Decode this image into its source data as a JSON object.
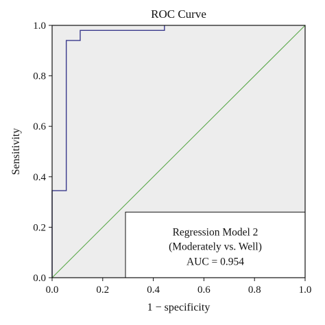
{
  "colors": {
    "plot_background": "#ededed",
    "roc_line": "#3a3a8c",
    "reference_line": "#5aa84a",
    "legend_background": "#ffffff",
    "axis": "#111111"
  },
  "chart_data": {
    "type": "line",
    "title": "ROC Curve",
    "xlabel": "1 − specificity",
    "ylabel": "Sensitivity",
    "xlim": [
      0.0,
      1.0
    ],
    "ylim": [
      0.0,
      1.0
    ],
    "x_ticks": [
      "0.0",
      "0.2",
      "0.4",
      "0.6",
      "0.8",
      "1.0"
    ],
    "y_ticks": [
      "0.0",
      "0.2",
      "0.4",
      "0.6",
      "0.8",
      "1.0"
    ],
    "grid": false,
    "series": [
      {
        "kind": "roc",
        "x": [
          0.0,
          0.0,
          0.056,
          0.056,
          0.111,
          0.111,
          0.444,
          0.444
        ],
        "y": [
          0.0,
          0.345,
          0.345,
          0.94,
          0.94,
          0.98,
          0.98,
          1.0
        ]
      },
      {
        "kind": "reference",
        "x": [
          0.0,
          1.0
        ],
        "y": [
          0.0,
          1.0
        ]
      }
    ],
    "legend": {
      "position": "bottom-right",
      "lines": [
        "Regression Model 2",
        "(Moderately vs. Well)",
        "AUC = 0.954"
      ]
    }
  }
}
